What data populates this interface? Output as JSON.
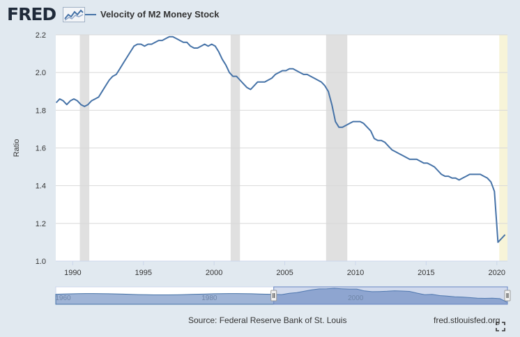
{
  "header": {
    "logo_text": "FRED",
    "logo_icon": "sparkline-icon",
    "series_name": "Velocity of M2 Money Stock"
  },
  "footer": {
    "source": "Source: Federal Reserve Bank of St. Louis",
    "site": "fred.stlouisfed.org",
    "fullscreen_icon": "fullscreen-icon"
  },
  "colors": {
    "line": "#4572a7",
    "recession": "#e0e0e0",
    "forecast_band": "#f7f4d8",
    "navigator_fill": "#9fb4d6"
  },
  "chart_data": {
    "type": "line",
    "title": "Velocity of M2 Money Stock",
    "xlabel": "",
    "ylabel": "Ratio",
    "xlim": [
      1988.8,
      2020.75
    ],
    "ylim": [
      1.0,
      2.2
    ],
    "grid": true,
    "legend": "top-left",
    "x_ticks": [
      1990,
      1995,
      2000,
      2005,
      2010,
      2015,
      2020
    ],
    "y_ticks": [
      1.0,
      1.2,
      1.4,
      1.6,
      1.8,
      2.0,
      2.2
    ],
    "y_tick_labels": [
      "1.0",
      "1.2",
      "1.4",
      "1.6",
      "1.8",
      "2.0",
      "2.2"
    ],
    "recessions": [
      [
        1990.5,
        1991.17
      ],
      [
        2001.17,
        2001.83
      ],
      [
        2007.92,
        2009.42
      ]
    ],
    "highlight_band": [
      2020.17,
      2020.75
    ],
    "series": [
      {
        "x": [
          1988.83,
          1989.08,
          1989.33,
          1989.58,
          1989.83,
          1990.08,
          1990.33,
          1990.58,
          1990.83,
          1991.08,
          1991.33,
          1991.58,
          1991.83,
          1992.08,
          1992.33,
          1992.58,
          1992.83,
          1993.08,
          1993.33,
          1993.58,
          1993.83,
          1994.08,
          1994.33,
          1994.58,
          1994.83,
          1995.08,
          1995.33,
          1995.58,
          1995.83,
          1996.08,
          1996.33,
          1996.58,
          1996.83,
          1997.08,
          1997.33,
          1997.58,
          1997.83,
          1998.08,
          1998.33,
          1998.58,
          1998.83,
          1999.08,
          1999.33,
          1999.58,
          1999.83,
          2000.08,
          2000.33,
          2000.58,
          2000.83,
          2001.08,
          2001.33,
          2001.58,
          2001.83,
          2002.08,
          2002.33,
          2002.58,
          2002.83,
          2003.08,
          2003.33,
          2003.58,
          2003.83,
          2004.08,
          2004.33,
          2004.58,
          2004.83,
          2005.08,
          2005.33,
          2005.58,
          2005.83,
          2006.08,
          2006.33,
          2006.58,
          2006.83,
          2007.08,
          2007.33,
          2007.58,
          2007.83,
          2008.08,
          2008.33,
          2008.58,
          2008.83,
          2009.08,
          2009.33,
          2009.58,
          2009.83,
          2010.08,
          2010.33,
          2010.58,
          2010.83,
          2011.08,
          2011.33,
          2011.58,
          2011.83,
          2012.08,
          2012.33,
          2012.58,
          2012.83,
          2013.08,
          2013.33,
          2013.58,
          2013.83,
          2014.08,
          2014.33,
          2014.58,
          2014.83,
          2015.08,
          2015.33,
          2015.58,
          2015.83,
          2016.08,
          2016.33,
          2016.58,
          2016.83,
          2017.08,
          2017.33,
          2017.58,
          2017.83,
          2018.08,
          2018.33,
          2018.58,
          2018.83,
          2019.08,
          2019.33,
          2019.58,
          2019.83,
          2020.08,
          2020.33,
          2020.58
        ],
        "values": [
          1.84,
          1.86,
          1.85,
          1.83,
          1.85,
          1.86,
          1.85,
          1.83,
          1.82,
          1.83,
          1.85,
          1.86,
          1.87,
          1.9,
          1.93,
          1.96,
          1.98,
          1.99,
          2.02,
          2.05,
          2.08,
          2.11,
          2.14,
          2.15,
          2.15,
          2.14,
          2.15,
          2.15,
          2.16,
          2.17,
          2.17,
          2.18,
          2.19,
          2.19,
          2.18,
          2.17,
          2.16,
          2.16,
          2.14,
          2.13,
          2.13,
          2.14,
          2.15,
          2.14,
          2.15,
          2.14,
          2.11,
          2.07,
          2.04,
          2.0,
          1.98,
          1.98,
          1.96,
          1.94,
          1.92,
          1.91,
          1.93,
          1.95,
          1.95,
          1.95,
          1.96,
          1.97,
          1.99,
          2.0,
          2.01,
          2.01,
          2.02,
          2.02,
          2.01,
          2.0,
          1.99,
          1.99,
          1.98,
          1.97,
          1.96,
          1.95,
          1.93,
          1.9,
          1.83,
          1.74,
          1.71,
          1.71,
          1.72,
          1.73,
          1.74,
          1.74,
          1.74,
          1.73,
          1.71,
          1.69,
          1.65,
          1.64,
          1.64,
          1.63,
          1.61,
          1.59,
          1.58,
          1.57,
          1.56,
          1.55,
          1.54,
          1.54,
          1.54,
          1.53,
          1.52,
          1.52,
          1.51,
          1.5,
          1.48,
          1.46,
          1.45,
          1.45,
          1.44,
          1.44,
          1.43,
          1.44,
          1.45,
          1.46,
          1.46,
          1.46,
          1.46,
          1.45,
          1.44,
          1.42,
          1.37,
          1.1,
          1.12,
          1.14
        ]
      }
    ],
    "navigator": {
      "x_ticks": [
        1960,
        1980,
        2000
      ],
      "xlim": [
        1959,
        2020.75
      ]
    }
  }
}
